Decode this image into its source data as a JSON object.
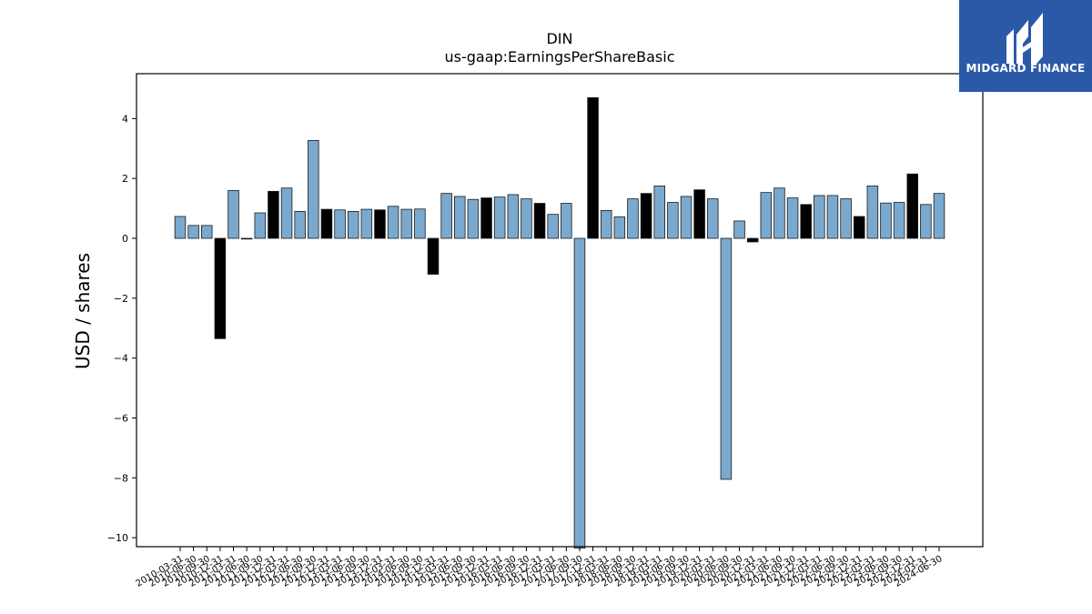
{
  "chart_data": {
    "type": "bar",
    "title": "DIN",
    "subtitle": "us-gaap:EarningsPerShareBasic",
    "xlabel": "",
    "ylabel": "USD / shares",
    "ylim": [
      -10.3,
      5.5
    ],
    "yticks": [
      -10,
      -8,
      -6,
      -4,
      -2,
      0,
      2,
      4
    ],
    "grid": false,
    "colors": {
      "default": "#7aa9cf",
      "highlight": "#000000",
      "edge": "#1a1a1a"
    },
    "categories": [
      "2010-03-31",
      "2010-06-30",
      "2010-09-30",
      "2010-12-31",
      "2011-03-31",
      "2011-06-30",
      "2011-09-30",
      "2011-12-31",
      "2012-03-31",
      "2012-06-30",
      "2012-09-30",
      "2012-12-31",
      "2013-03-31",
      "2013-06-30",
      "2013-09-30",
      "2013-12-31",
      "2014-03-31",
      "2014-06-30",
      "2014-09-30",
      "2014-12-31",
      "2015-03-31",
      "2015-06-30",
      "2015-09-30",
      "2015-12-31",
      "2016-03-31",
      "2016-06-30",
      "2016-09-30",
      "2016-12-31",
      "2017-03-31",
      "2017-06-30",
      "2017-09-30",
      "2017-12-31",
      "2018-03-31",
      "2018-06-30",
      "2018-09-30",
      "2018-12-31",
      "2019-03-31",
      "2019-06-30",
      "2019-09-30",
      "2019-12-31",
      "2020-03-31",
      "2020-06-30",
      "2020-09-30",
      "2020-12-31",
      "2021-03-31",
      "2021-06-30",
      "2021-09-30",
      "2021-12-31",
      "2022-03-31",
      "2022-06-30",
      "2022-09-30",
      "2022-12-31",
      "2023-03-31",
      "2023-06-30",
      "2023-09-30",
      "2023-12-31",
      "2024-03-31",
      "2024-06-30"
    ],
    "values": [
      0.73,
      0.43,
      0.43,
      -3.35,
      1.6,
      -0.02,
      0.85,
      1.57,
      1.68,
      0.9,
      3.27,
      0.97,
      0.95,
      0.9,
      0.97,
      0.95,
      1.07,
      0.97,
      0.98,
      -1.2,
      1.5,
      1.4,
      1.3,
      1.35,
      1.38,
      1.46,
      1.32,
      1.17,
      0.8,
      1.17,
      -10.35,
      4.7,
      0.93,
      0.72,
      1.32,
      1.5,
      1.75,
      1.2,
      1.4,
      1.62,
      1.32,
      -8.05,
      0.58,
      -0.12,
      1.53,
      1.68,
      1.35,
      1.13,
      1.43,
      1.43,
      1.32,
      0.73,
      1.75,
      1.18,
      1.2,
      2.15,
      1.13,
      1.5
    ],
    "highlight_indices": [
      3,
      5,
      7,
      11,
      15,
      19,
      23,
      27,
      31,
      35,
      39,
      43,
      47,
      51,
      55
    ]
  },
  "logo": {
    "text": "MIDGARD FINANCE"
  }
}
